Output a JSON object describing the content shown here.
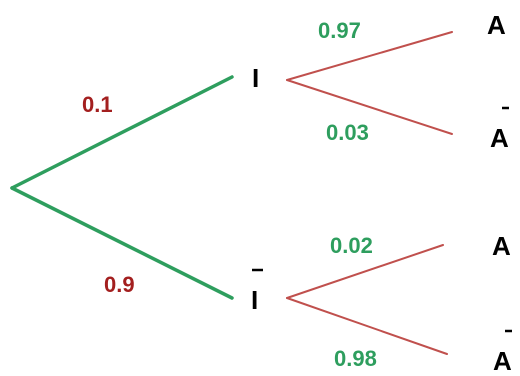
{
  "colors": {
    "first_level_branch": "#2e9e5e",
    "second_level_branch": "#c0504d",
    "prob_red": "#a31f1f",
    "prob_green": "#2e9e5e"
  },
  "nodes": {
    "I": "I",
    "I_bar": "I",
    "A_top": "A",
    "A_bar_top": "A",
    "A_bottom": "A",
    "A_bar_bottom": "A"
  },
  "probabilities": {
    "p_I": "0.1",
    "p_I_bar": "0.9",
    "p_A_given_I": "0.97",
    "p_A_bar_given_I": "0.03",
    "p_A_given_I_bar": "0.02",
    "p_A_bar_given_I_bar": "0.98"
  }
}
